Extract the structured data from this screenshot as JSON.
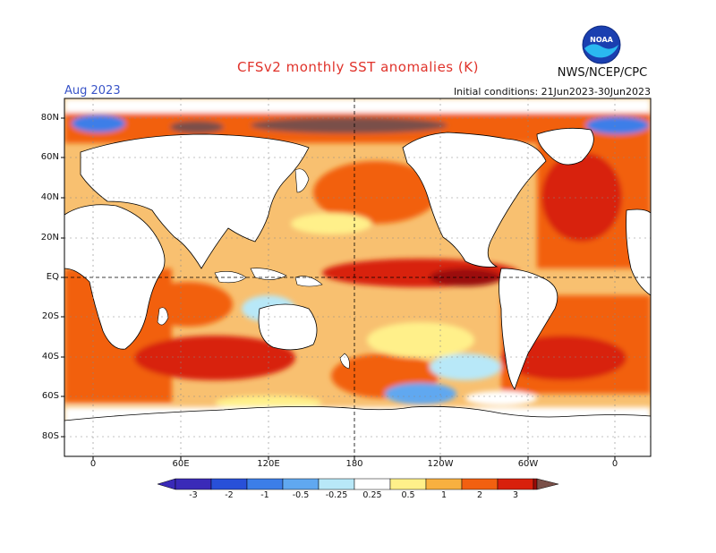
{
  "header": {
    "title": "CFSv2 monthly SST anomalies (K)",
    "month": "Aug 2023",
    "initial_conditions": "Initial conditions: 21Jun2023-30Jun2023",
    "agency": "NWS/NCEP/CPC",
    "logo_text": "NOAA"
  },
  "map": {
    "lat_labels": [
      "80N",
      "60N",
      "40N",
      "20N",
      "EQ",
      "20S",
      "40S",
      "60S",
      "80S"
    ],
    "lon_labels": [
      "0",
      "60E",
      "120E",
      "180",
      "120W",
      "60W",
      "0"
    ]
  },
  "colorbar": {
    "labels": [
      "-3",
      "-2",
      "-1",
      "-0.5",
      "-0.25",
      "0.25",
      "0.5",
      "1",
      "2",
      "3"
    ],
    "colors": [
      "#3a2ab8",
      "#2850d8",
      "#3c7ee8",
      "#60a8f0",
      "#b8e8f8",
      "#ffffff",
      "#fff08a",
      "#f8b040",
      "#f26010",
      "#d8200c",
      "#9a0c08",
      "#7a5048"
    ]
  }
}
